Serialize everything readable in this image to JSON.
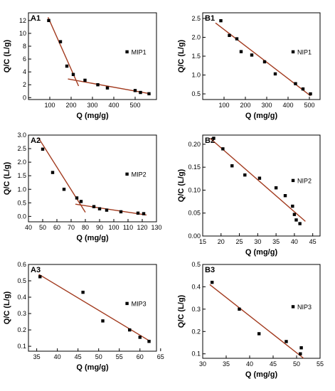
{
  "colors": {
    "fit_line": "#a23a1e",
    "marker": "#000000",
    "axis": "#000000"
  },
  "chart_data": [
    {
      "id": "A1",
      "type": "scatter",
      "panel_label": "A1",
      "legend": "MIP1",
      "xlabel": "Q (mg/g)",
      "ylabel": "Q/C (L/g)",
      "xlim": [
        0,
        600
      ],
      "ylim": [
        -0.3,
        13.2
      ],
      "xticks": [
        100,
        200,
        300,
        400,
        500
      ],
      "yticks": [
        0,
        2,
        4,
        6,
        8,
        10,
        12
      ],
      "points": [
        [
          95,
          12.0
        ],
        [
          150,
          8.7
        ],
        [
          180,
          4.9
        ],
        [
          210,
          3.6
        ],
        [
          265,
          2.7
        ],
        [
          325,
          2.0
        ],
        [
          370,
          1.5
        ],
        [
          500,
          1.1
        ],
        [
          525,
          0.8
        ],
        [
          565,
          0.6
        ]
      ],
      "fits": [
        [
          [
            92,
            12.5
          ],
          [
            235,
            1.8
          ]
        ],
        [
          [
            185,
            2.9
          ],
          [
            570,
            0.6
          ]
        ]
      ]
    },
    {
      "id": "B1",
      "type": "scatter",
      "panel_label": "B1",
      "legend": "NIP1",
      "xlabel": "Q (mg/g)",
      "ylabel": "Q/C (L/g)",
      "xlim": [
        0,
        550
      ],
      "ylim": [
        0.35,
        2.65
      ],
      "xticks": [
        100,
        200,
        300,
        400,
        500
      ],
      "yticks": [
        0.5,
        1.0,
        1.5,
        2.0,
        2.5
      ],
      "points": [
        [
          85,
          2.44
        ],
        [
          125,
          2.05
        ],
        [
          160,
          1.96
        ],
        [
          180,
          1.62
        ],
        [
          230,
          1.53
        ],
        [
          290,
          1.35
        ],
        [
          340,
          1.03
        ],
        [
          435,
          0.77
        ],
        [
          470,
          0.63
        ],
        [
          505,
          0.5
        ]
      ],
      "fits": [
        [
          [
            60,
            2.38
          ],
          [
            505,
            0.45
          ]
        ]
      ]
    },
    {
      "id": "A2",
      "type": "scatter",
      "panel_label": "A2",
      "legend": "MIP2",
      "xlabel": "Q (mg/g)",
      "ylabel": "Q/C (L/g)",
      "xlim": [
        40,
        130
      ],
      "ylim": [
        -0.2,
        3.0
      ],
      "xticks": [
        40,
        50,
        60,
        70,
        80,
        90,
        100,
        110,
        120,
        130
      ],
      "yticks": [
        0.0,
        0.5,
        1.0,
        1.5,
        2.0,
        2.5,
        3.0
      ],
      "points": [
        [
          50,
          2.48
        ],
        [
          57,
          1.62
        ],
        [
          65,
          1.0
        ],
        [
          74,
          0.68
        ],
        [
          77,
          0.55
        ],
        [
          86,
          0.36
        ],
        [
          90,
          0.28
        ],
        [
          95,
          0.23
        ],
        [
          105,
          0.17
        ],
        [
          117,
          0.12
        ],
        [
          121,
          0.1
        ]
      ],
      "fits": [
        [
          [
            47,
            2.9
          ],
          [
            80,
            0.15
          ]
        ],
        [
          [
            73,
            0.45
          ],
          [
            123,
            0.05
          ]
        ]
      ]
    },
    {
      "id": "B2",
      "type": "scatter",
      "panel_label": "B2",
      "legend": "NIP2",
      "xlabel": "Q (mg/g)",
      "ylabel": "Q/C (L/g)",
      "xlim": [
        15,
        47
      ],
      "ylim": [
        0.0,
        0.22
      ],
      "xticks": [
        15,
        20,
        25,
        30,
        35,
        40,
        45
      ],
      "yticks": [
        0.0,
        0.05,
        0.1,
        0.15,
        0.2
      ],
      "points": [
        [
          18,
          0.213
        ],
        [
          20.5,
          0.19
        ],
        [
          23,
          0.153
        ],
        [
          26.5,
          0.133
        ],
        [
          30.5,
          0.126
        ],
        [
          35,
          0.105
        ],
        [
          37.5,
          0.088
        ],
        [
          39.5,
          0.065
        ],
        [
          40,
          0.047
        ],
        [
          40.5,
          0.035
        ],
        [
          41.5,
          0.027
        ]
      ],
      "fits": [
        [
          [
            17,
            0.213
          ],
          [
            43,
            0.032
          ]
        ]
      ]
    },
    {
      "id": "A3",
      "type": "scatter",
      "panel_label": "A3",
      "legend": "MIP3",
      "xlabel": "Q (mg/g)",
      "ylabel": "Q/C (L/g)",
      "xlim": [
        33,
        64
      ],
      "ylim": [
        0.07,
        0.6
      ],
      "xticks": [
        35,
        40,
        45,
        50,
        55,
        60,
        65
      ],
      "yticks": [
        0.1,
        0.2,
        0.3,
        0.4,
        0.5,
        0.6
      ],
      "points": [
        [
          35.8,
          0.525
        ],
        [
          46.2,
          0.43
        ],
        [
          51,
          0.255
        ],
        [
          57.5,
          0.2
        ],
        [
          60,
          0.155
        ],
        [
          62.2,
          0.13
        ]
      ],
      "fits": [
        [
          [
            35.5,
            0.54
          ],
          [
            62.5,
            0.13
          ]
        ]
      ]
    },
    {
      "id": "B3",
      "type": "scatter",
      "panel_label": "B3",
      "legend": "NIP3",
      "xlabel": "Q (mg/g)",
      "ylabel": "Q/C (L/g)",
      "xlim": [
        30,
        55
      ],
      "ylim": [
        0.08,
        0.5
      ],
      "xticks": [
        30,
        35,
        40,
        45,
        50,
        55
      ],
      "yticks": [
        0.1,
        0.2,
        0.3,
        0.4,
        0.5
      ],
      "points": [
        [
          32,
          0.42
        ],
        [
          37.8,
          0.3
        ],
        [
          42,
          0.19
        ],
        [
          47.8,
          0.155
        ],
        [
          51,
          0.127
        ],
        [
          50.8,
          0.1
        ]
      ],
      "fits": [
        [
          [
            31.5,
            0.41
          ],
          [
            51.5,
            0.08
          ]
        ]
      ]
    }
  ]
}
